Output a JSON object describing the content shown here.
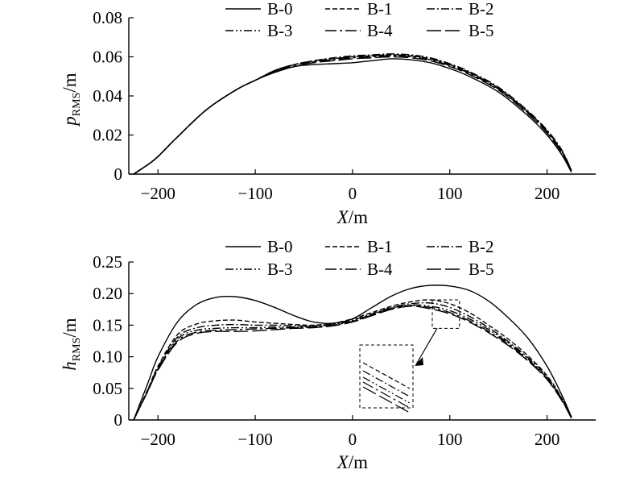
{
  "line_styles": {
    "B-0": "",
    "B-1": "6,3",
    "B-2": "10,3,2,3",
    "B-3": "10,3,2,3,2,3",
    "B-4": "14,4,3,4",
    "B-5": "18,5"
  },
  "color": "#000000",
  "chart_data": [
    {
      "type": "line",
      "xlabel_main": "X",
      "xlabel_unit": "/m",
      "ylabel_main": "p",
      "ylabel_sub": "RMS",
      "ylabel_unit": "/m",
      "xlim": [
        -230,
        250
      ],
      "ylim": [
        0,
        0.08
      ],
      "xticks": [
        -200,
        -100,
        0,
        100,
        200
      ],
      "xtick_labels": [
        "−200",
        "−100",
        "0",
        "100",
        "200"
      ],
      "yticks": [
        0,
        0.02,
        0.04,
        0.06,
        0.08
      ],
      "ytick_labels": [
        "0",
        "0.02",
        "0.04",
        "0.06",
        "0.08"
      ],
      "legend": {
        "placement": "top",
        "entries": [
          "B-0",
          "B-1",
          "B-2",
          "B-3",
          "B-4",
          "B-5"
        ]
      },
      "x": [
        -225,
        -210,
        -200,
        -180,
        -150,
        -120,
        -100,
        -80,
        -60,
        -40,
        -20,
        0,
        20,
        40,
        60,
        80,
        100,
        120,
        150,
        180,
        200,
        215,
        225
      ],
      "series": [
        {
          "name": "B-0",
          "values": [
            0,
            0.005,
            0.009,
            0.019,
            0.033,
            0.043,
            0.048,
            0.052,
            0.055,
            0.056,
            0.0565,
            0.057,
            0.058,
            0.059,
            0.0585,
            0.057,
            0.054,
            0.05,
            0.042,
            0.03,
            0.02,
            0.01,
            0.001
          ]
        },
        {
          "name": "B-1",
          "values": [
            0,
            0.005,
            0.009,
            0.019,
            0.033,
            0.043,
            0.048,
            0.053,
            0.056,
            0.058,
            0.059,
            0.06,
            0.0605,
            0.061,
            0.0605,
            0.059,
            0.056,
            0.052,
            0.044,
            0.032,
            0.022,
            0.012,
            0.002
          ]
        },
        {
          "name": "B-2",
          "values": [
            0,
            0.005,
            0.009,
            0.019,
            0.033,
            0.043,
            0.048,
            0.053,
            0.056,
            0.058,
            0.0595,
            0.0605,
            0.061,
            0.0615,
            0.061,
            0.0595,
            0.0565,
            0.0525,
            0.0445,
            0.0325,
            0.0225,
            0.0125,
            0.002
          ]
        },
        {
          "name": "B-3",
          "values": [
            0,
            0.005,
            0.009,
            0.019,
            0.033,
            0.043,
            0.048,
            0.053,
            0.056,
            0.0575,
            0.059,
            0.06,
            0.0605,
            0.061,
            0.0605,
            0.059,
            0.056,
            0.052,
            0.044,
            0.032,
            0.022,
            0.012,
            0.002
          ]
        },
        {
          "name": "B-4",
          "values": [
            0,
            0.005,
            0.009,
            0.019,
            0.033,
            0.043,
            0.048,
            0.0525,
            0.0555,
            0.0575,
            0.0585,
            0.0595,
            0.06,
            0.0605,
            0.06,
            0.0585,
            0.0555,
            0.0515,
            0.0435,
            0.0315,
            0.0215,
            0.0115,
            0.0015
          ]
        },
        {
          "name": "B-5",
          "values": [
            0,
            0.005,
            0.009,
            0.019,
            0.033,
            0.043,
            0.048,
            0.0525,
            0.055,
            0.057,
            0.058,
            0.059,
            0.0595,
            0.06,
            0.0595,
            0.058,
            0.055,
            0.051,
            0.043,
            0.031,
            0.021,
            0.011,
            0.001
          ]
        }
      ]
    },
    {
      "type": "line",
      "xlabel_main": "X",
      "xlabel_unit": "/m",
      "ylabel_main": "h",
      "ylabel_sub": "RMS",
      "ylabel_unit": "/m",
      "xlim": [
        -230,
        250
      ],
      "ylim": [
        0,
        0.25
      ],
      "xticks": [
        -200,
        -100,
        0,
        100,
        200
      ],
      "xtick_labels": [
        "−200",
        "−100",
        "0",
        "100",
        "200"
      ],
      "yticks": [
        0,
        0.05,
        0.1,
        0.15,
        0.2,
        0.25
      ],
      "ytick_labels": [
        "0",
        "0.05",
        "0.10",
        "0.15",
        "0.20",
        "0.25"
      ],
      "legend": {
        "placement": "top",
        "entries": [
          "B-0",
          "B-1",
          "B-2",
          "B-3",
          "B-4",
          "B-5"
        ]
      },
      "inset": {
        "type": "zoom",
        "source_region": {
          "x": [
            82,
            110
          ],
          "y": [
            0.145,
            0.19
          ]
        }
      },
      "x": [
        -225,
        -210,
        -200,
        -180,
        -160,
        -140,
        -120,
        -100,
        -80,
        -60,
        -40,
        -20,
        0,
        20,
        40,
        60,
        80,
        100,
        120,
        140,
        160,
        180,
        200,
        215,
        225
      ],
      "series": [
        {
          "name": "B-0",
          "values": [
            0,
            0.06,
            0.1,
            0.155,
            0.183,
            0.194,
            0.195,
            0.189,
            0.178,
            0.165,
            0.155,
            0.153,
            0.16,
            0.178,
            0.196,
            0.208,
            0.213,
            0.212,
            0.205,
            0.188,
            0.162,
            0.13,
            0.085,
            0.04,
            0.005
          ]
        },
        {
          "name": "B-1",
          "values": [
            0,
            0.05,
            0.085,
            0.135,
            0.152,
            0.157,
            0.158,
            0.155,
            0.153,
            0.151,
            0.15,
            0.153,
            0.16,
            0.17,
            0.18,
            0.187,
            0.19,
            0.184,
            0.17,
            0.15,
            0.128,
            0.102,
            0.07,
            0.035,
            0.004
          ]
        },
        {
          "name": "B-2",
          "values": [
            0,
            0.049,
            0.083,
            0.131,
            0.146,
            0.15,
            0.151,
            0.15,
            0.15,
            0.149,
            0.149,
            0.152,
            0.158,
            0.168,
            0.178,
            0.184,
            0.185,
            0.178,
            0.164,
            0.146,
            0.124,
            0.099,
            0.068,
            0.034,
            0.004
          ]
        },
        {
          "name": "B-3",
          "values": [
            0,
            0.048,
            0.081,
            0.128,
            0.142,
            0.145,
            0.146,
            0.146,
            0.147,
            0.147,
            0.148,
            0.151,
            0.157,
            0.167,
            0.177,
            0.182,
            0.18,
            0.173,
            0.16,
            0.143,
            0.122,
            0.097,
            0.066,
            0.033,
            0.003
          ]
        },
        {
          "name": "B-4",
          "values": [
            0,
            0.047,
            0.08,
            0.125,
            0.139,
            0.142,
            0.143,
            0.144,
            0.145,
            0.146,
            0.147,
            0.15,
            0.156,
            0.166,
            0.176,
            0.181,
            0.178,
            0.17,
            0.157,
            0.14,
            0.12,
            0.095,
            0.065,
            0.032,
            0.003
          ]
        },
        {
          "name": "B-5",
          "values": [
            0,
            0.047,
            0.079,
            0.123,
            0.137,
            0.14,
            0.14,
            0.141,
            0.143,
            0.145,
            0.146,
            0.149,
            0.155,
            0.165,
            0.175,
            0.18,
            0.176,
            0.168,
            0.155,
            0.138,
            0.118,
            0.094,
            0.064,
            0.031,
            0.003
          ]
        }
      ]
    }
  ]
}
